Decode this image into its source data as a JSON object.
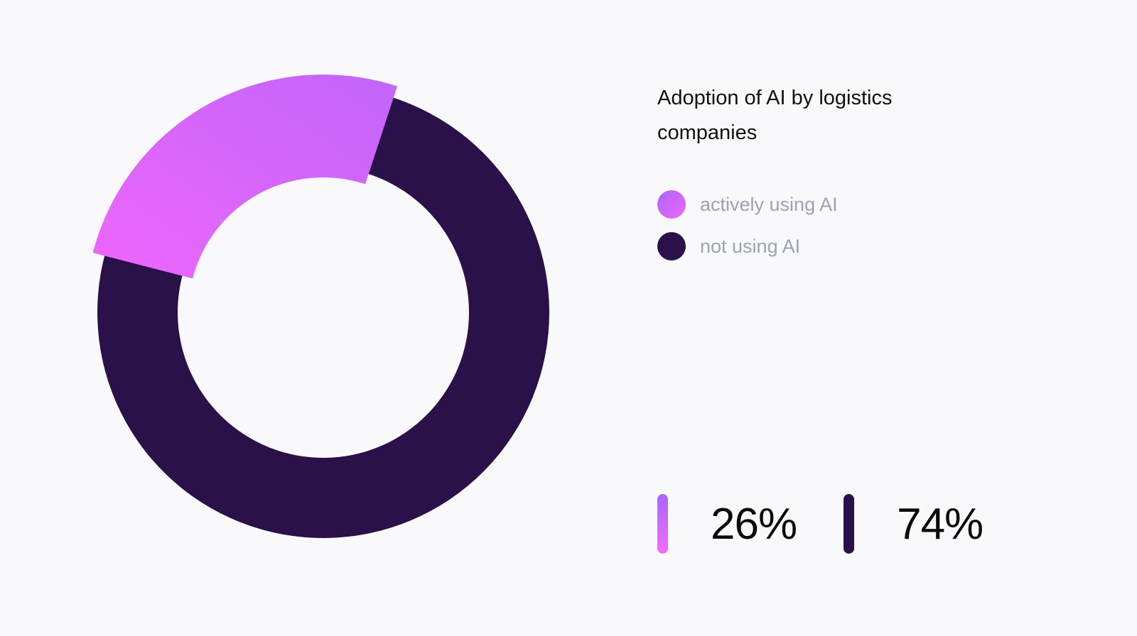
{
  "chart_data": {
    "type": "pie",
    "variant": "donut",
    "title": "Adoption of AI by logistics companies",
    "categories": [
      "actively using AI",
      "not using AI"
    ],
    "values": [
      26,
      74
    ],
    "unit": "%",
    "colors": [
      "#e066f8",
      "#2a1149"
    ],
    "legend_position": "right"
  },
  "title": "Adoption of AI by logistics companies",
  "legend": [
    {
      "label": "actively using AI",
      "color": "#e066f8"
    },
    {
      "label": "not using AI",
      "color": "#2a1149"
    }
  ],
  "stats": [
    {
      "value": "26%",
      "color": "#e066f8"
    },
    {
      "value": "74%",
      "color": "#2a1149"
    }
  ],
  "colors": {
    "background": "#f9f9fb",
    "accent_start": "#b266fb",
    "accent_end": "#ed66fb",
    "dark": "#2a1149",
    "legend_text": "#9aa3b2"
  }
}
